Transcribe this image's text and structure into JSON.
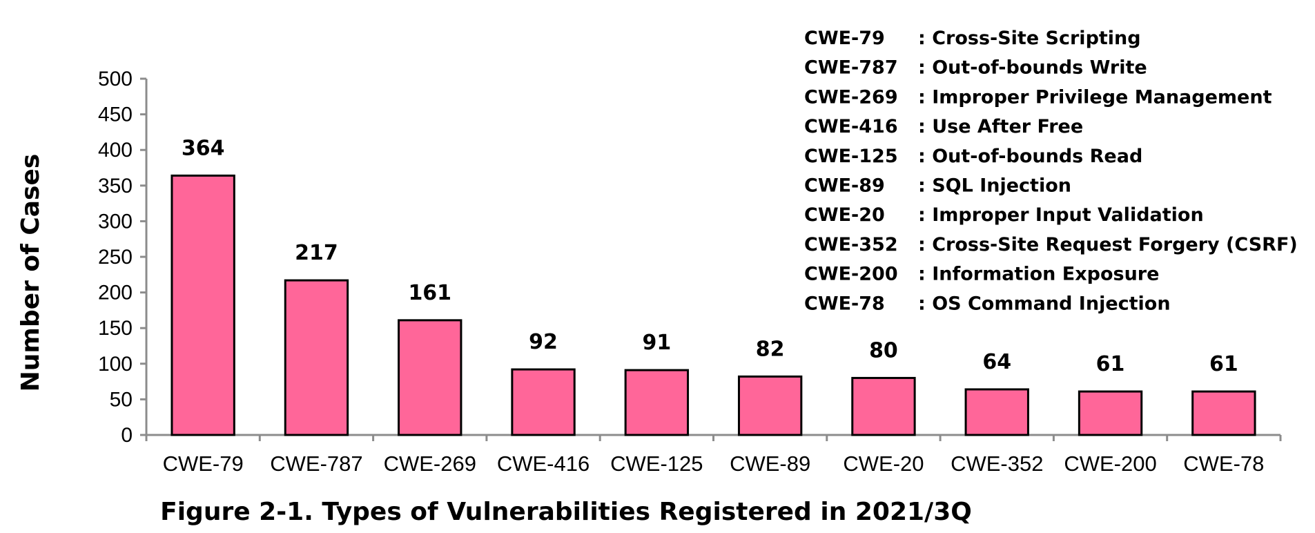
{
  "chart_data": {
    "type": "bar",
    "title": "Figure 2-1. Types of Vulnerabilities Registered in 2021/3Q",
    "xlabel": "",
    "ylabel": "Number of Cases",
    "ylim": [
      0,
      500
    ],
    "yticks": [
      0,
      50,
      100,
      150,
      200,
      250,
      300,
      350,
      400,
      450,
      500
    ],
    "categories": [
      "CWE-79",
      "CWE-787",
      "CWE-269",
      "CWE-416",
      "CWE-125",
      "CWE-89",
      "CWE-20",
      "CWE-352",
      "CWE-200",
      "CWE-78"
    ],
    "values": [
      364,
      217,
      161,
      92,
      91,
      82,
      80,
      64,
      61,
      61
    ],
    "data_labels": [
      "364",
      "217",
      "161",
      "92",
      "91",
      "82",
      "80",
      "64",
      "61",
      "61"
    ],
    "bar_color": "#ff6699",
    "grid": false,
    "legend_placement": "top-right",
    "legend": [
      {
        "code": "CWE-79",
        "desc": ": Cross-Site Scripting"
      },
      {
        "code": "CWE-787",
        "desc": ": Out-of-bounds Write"
      },
      {
        "code": "CWE-269",
        "desc": ": Improper Privilege Management"
      },
      {
        "code": "CWE-416",
        "desc": ": Use After Free"
      },
      {
        "code": "CWE-125",
        "desc": ": Out-of-bounds Read"
      },
      {
        "code": "CWE-89",
        "desc": ": SQL Injection"
      },
      {
        "code": "CWE-20",
        "desc": ": Improper Input Validation"
      },
      {
        "code": "CWE-352",
        "desc": ": Cross-Site Request Forgery (CSRF)"
      },
      {
        "code": "CWE-200",
        "desc": ": Information Exposure"
      },
      {
        "code": "CWE-78",
        "desc": ": OS Command Injection"
      }
    ]
  }
}
